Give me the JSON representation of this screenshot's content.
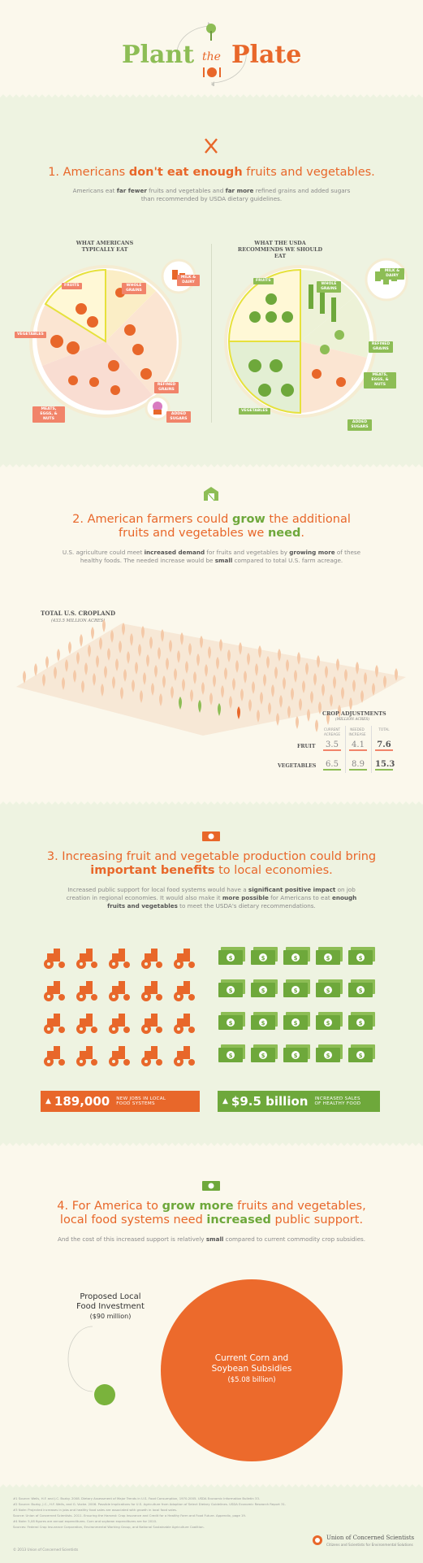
{
  "header": {
    "title_plant": "Plant",
    "title_the": "the",
    "title_plate": "Plate"
  },
  "colors": {
    "orange": "#e8672a",
    "green": "#6ea83b",
    "salmon": "#f1846a",
    "cream": "#fbf8ec",
    "mint": "#eef3e1"
  },
  "section1": {
    "icon": "fork-knife-icon",
    "title_a": "1. Americans ",
    "title_b": "don't eat enough",
    "title_c": " fruits and vegetables.",
    "body_1": "Americans eat ",
    "body_2": "far fewer",
    "body_3": " fruits and vegetables and ",
    "body_4": "far more",
    "body_5": " refined grains and added sugars",
    "body_6": "than recommended by USDA dietary guidelines.",
    "left_plate": {
      "title": "WHAT AMERICANS TYPICALLY EAT",
      "labels": {
        "fruits": "FRUITS",
        "whole_grains": "WHOLE GRAINS",
        "milk": "MILK & DAIRY",
        "vegetables": "VEGETABLES",
        "meats": "MEATS, EGGS, & NUTS",
        "refined": "REFINED GRAINS",
        "sugars": "ADDED SUGARS"
      }
    },
    "right_plate": {
      "title": "WHAT THE USDA RECOMMENDS WE SHOULD EAT",
      "labels": {
        "fruits": "FRUITS",
        "whole_grains": "WHOLE GRAINS",
        "milk": "MILK & DAIRY",
        "refined": "REFINED GRAINS",
        "meats": "MEATS, EGGS, & NUTS",
        "vegetables": "VEGETABLES",
        "sugars": "ADDED SUGARS"
      }
    }
  },
  "section2": {
    "icon": "barn-icon",
    "title_a": "2. American farmers could ",
    "title_b": "grow",
    "title_c": " the additional",
    "title_d": "fruits and vegetables we ",
    "title_e": "need",
    "title_f": ".",
    "body_1": "U.S. agriculture could meet ",
    "body_2": "increased demand",
    "body_3": " for fruits and vegetables by ",
    "body_4": "growing more",
    "body_5": " of these",
    "body_6": "healthy foods. The needed increase would be ",
    "body_7": "small",
    "body_8": " compared to total U.S. farm acreage.",
    "cropland_title": "TOTAL U.S. CROPLAND",
    "cropland_sub": "(433.5 MILLION ACRES)",
    "adjust_title": "CROP ADJUSTMENTS",
    "adjust_sub": "(MILLION ACRES)",
    "columns": [
      "CURRENT ACREAGE",
      "NEEDED INCREASE",
      "TOTAL"
    ],
    "rows": [
      {
        "label": "FRUIT",
        "current": "3.5",
        "increase": "4.1",
        "total": "7.6"
      },
      {
        "label": "VEGETABLES",
        "current": "6.5",
        "increase": "8.9",
        "total": "15.3"
      }
    ]
  },
  "section3": {
    "icon": "dollar-bill-icon",
    "title_a": "3. Increasing fruit and vegetable production could bring",
    "title_b": "important benefits",
    "title_c": " to local economies.",
    "body_1": "Increased public support for local food systems would have a ",
    "body_2": "significant positive impact",
    "body_3": " on job",
    "body_4": "creation in regional economies. It would also make it ",
    "body_5": "more possible",
    "body_6": " for Americans to eat ",
    "body_7": "enough",
    "body_8": "fruits and vegetables",
    "body_9": " to meet the USDA's dietary recommendations.",
    "jobs_num": "189,000",
    "jobs_label_1": "NEW JOBS IN LOCAL",
    "jobs_label_2": "FOOD SYSTEMS",
    "sales_num": "$9.5 billion",
    "sales_label_1": "INCREASED SALES",
    "sales_label_2": "OF HEALTHY FOOD",
    "tractor_count": 20,
    "money_count": 20
  },
  "section4": {
    "icon": "dollar-bill-icon",
    "title_a": "4. For America to ",
    "title_b": "grow more",
    "title_c": " fruits and vegetables,",
    "title_d": "local food systems need ",
    "title_e": "increased",
    "title_f": " public support.",
    "body_1": "And the cost of this increased support is relatively ",
    "body_2": "small",
    "body_3": " compared to current commodity crop subsidies.",
    "small_label_1": "Proposed Local",
    "small_label_2": "Food Investment",
    "small_value": "($90 million)",
    "big_label_1": "Current Corn and",
    "big_label_2": "Soybean Subsidies",
    "big_value": "($5.08 billion)"
  },
  "footer": {
    "sources": [
      "#1  Source: Wells, H.F. and J.C. Buzby. 2008. Dietary Assessment of Major Trends in U.S. Food Consumption, 1970-2005. USDA Economic Information Bulletin 33.",
      "#2  Source: Buzby, J.C., H.F. Wells, and G. Vocke. 2006. Possible Implications for U.S. Agriculture from Adoption of Select Dietary Guidelines. USDA Economic Research Report 31.",
      "#3  Note: Projected increases in jobs and healthy food sales are associated with growth in local food sales.",
      "      Source: Union of Concerned Scientists. 2011. Ensuring the Harvest: Crop Insurance and Credit for a Healthy Farm and Food Future. Appendix, page 19.",
      "#4  Note: 5,08 figures are annual expenditures. Corn and soybean expenditures are for 2010.",
      "      Sources: Federal Crop Insurance Corporation, Environmental Working Group, and National Sustainable Agriculture Coalition."
    ],
    "copyright": "© 2013 Union of Concerned Scientists",
    "org_name": "Union of Concerned Scientists",
    "org_tagline": "Citizens and Scientists for Environmental Solutions"
  }
}
